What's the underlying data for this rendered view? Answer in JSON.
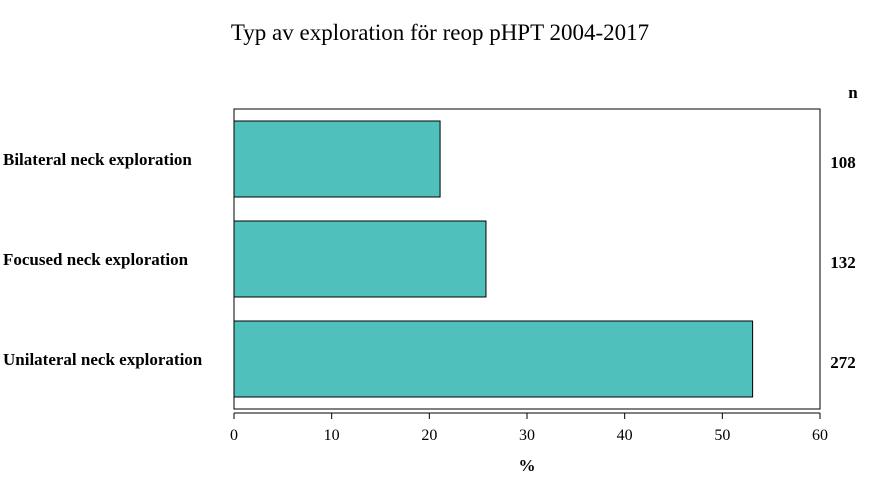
{
  "chart_data": {
    "type": "bar",
    "orientation": "horizontal",
    "title": "Typ av exploration för reop pHPT 2004-2017",
    "xlabel": "%",
    "ylabel": "",
    "xlim": [
      0,
      60
    ],
    "xticks": [
      "0",
      "10",
      "20",
      "30",
      "40",
      "50",
      "60"
    ],
    "categories": [
      "Bilateral neck exploration",
      "Focused neck exploration",
      "Unilateral neck exploration"
    ],
    "values": [
      21.1,
      25.8,
      53.1
    ],
    "right_axis_header": "n",
    "n_values": [
      "108",
      "132",
      "272"
    ],
    "bar_color": "#4fc0bc",
    "grid": false,
    "legend": "none"
  }
}
